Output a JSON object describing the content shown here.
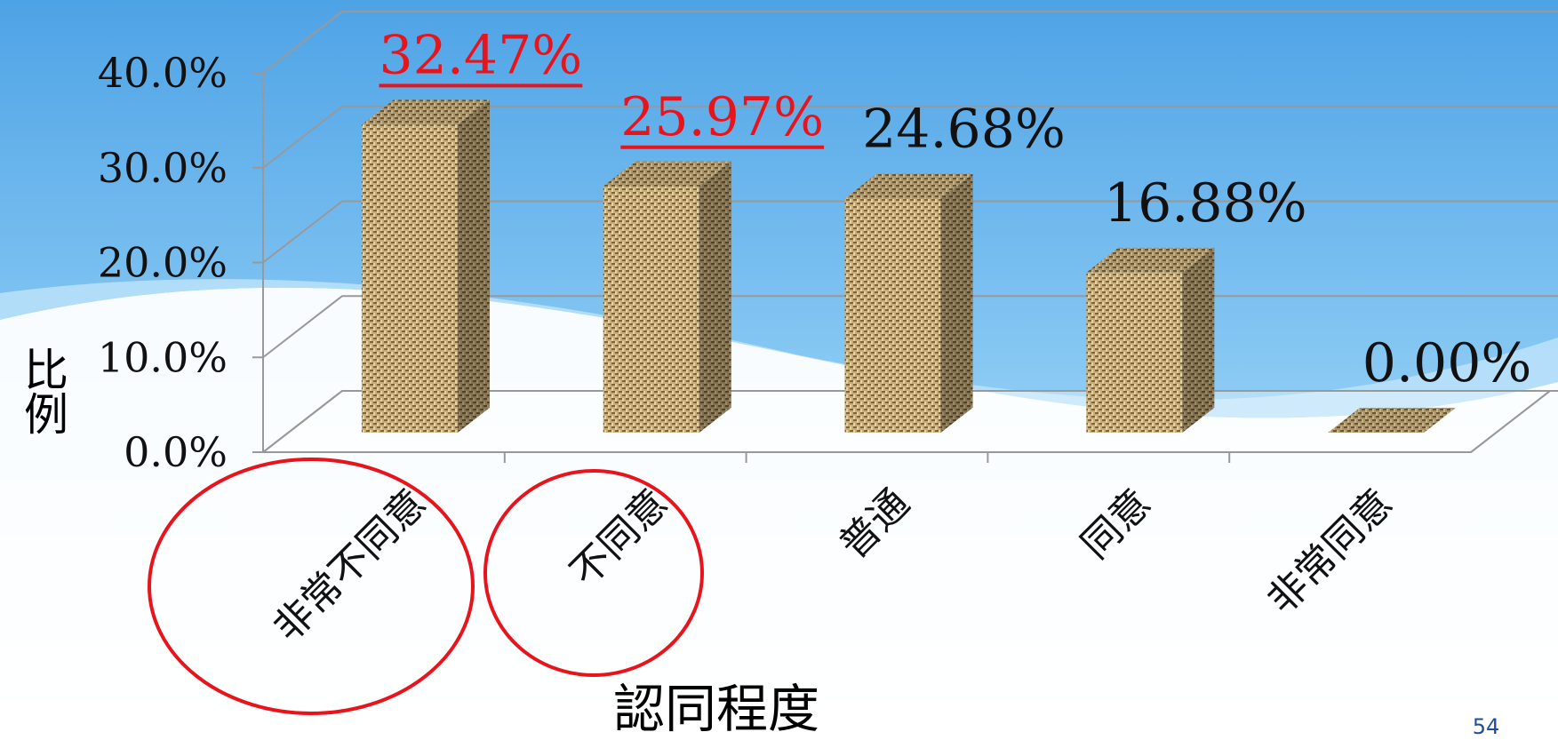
{
  "chart_data": {
    "type": "bar3d",
    "categories": [
      "非常不同意",
      "不同意",
      "普通",
      "同意",
      "非常同意"
    ],
    "values": [
      32.47,
      25.97,
      24.68,
      16.88,
      0.0
    ],
    "value_labels": [
      "32.47%",
      "25.97%",
      "24.68%",
      "16.88%",
      "0.00%"
    ],
    "value_label_colors": [
      "#e8141c",
      "#e8141c",
      "#111111",
      "#111111",
      "#111111"
    ],
    "x_label": "認同程度",
    "y_label": "比例",
    "ylim": [
      0,
      40
    ],
    "yticks": [
      {
        "value": 0,
        "label": "0.0%"
      },
      {
        "value": 10,
        "label": "10.0%"
      },
      {
        "value": 20,
        "label": "20.0%"
      },
      {
        "value": 30,
        "label": "30.0%"
      },
      {
        "value": 40,
        "label": "40.0%"
      }
    ],
    "grid": true,
    "color": "#b89c68"
  },
  "page_number": "54"
}
